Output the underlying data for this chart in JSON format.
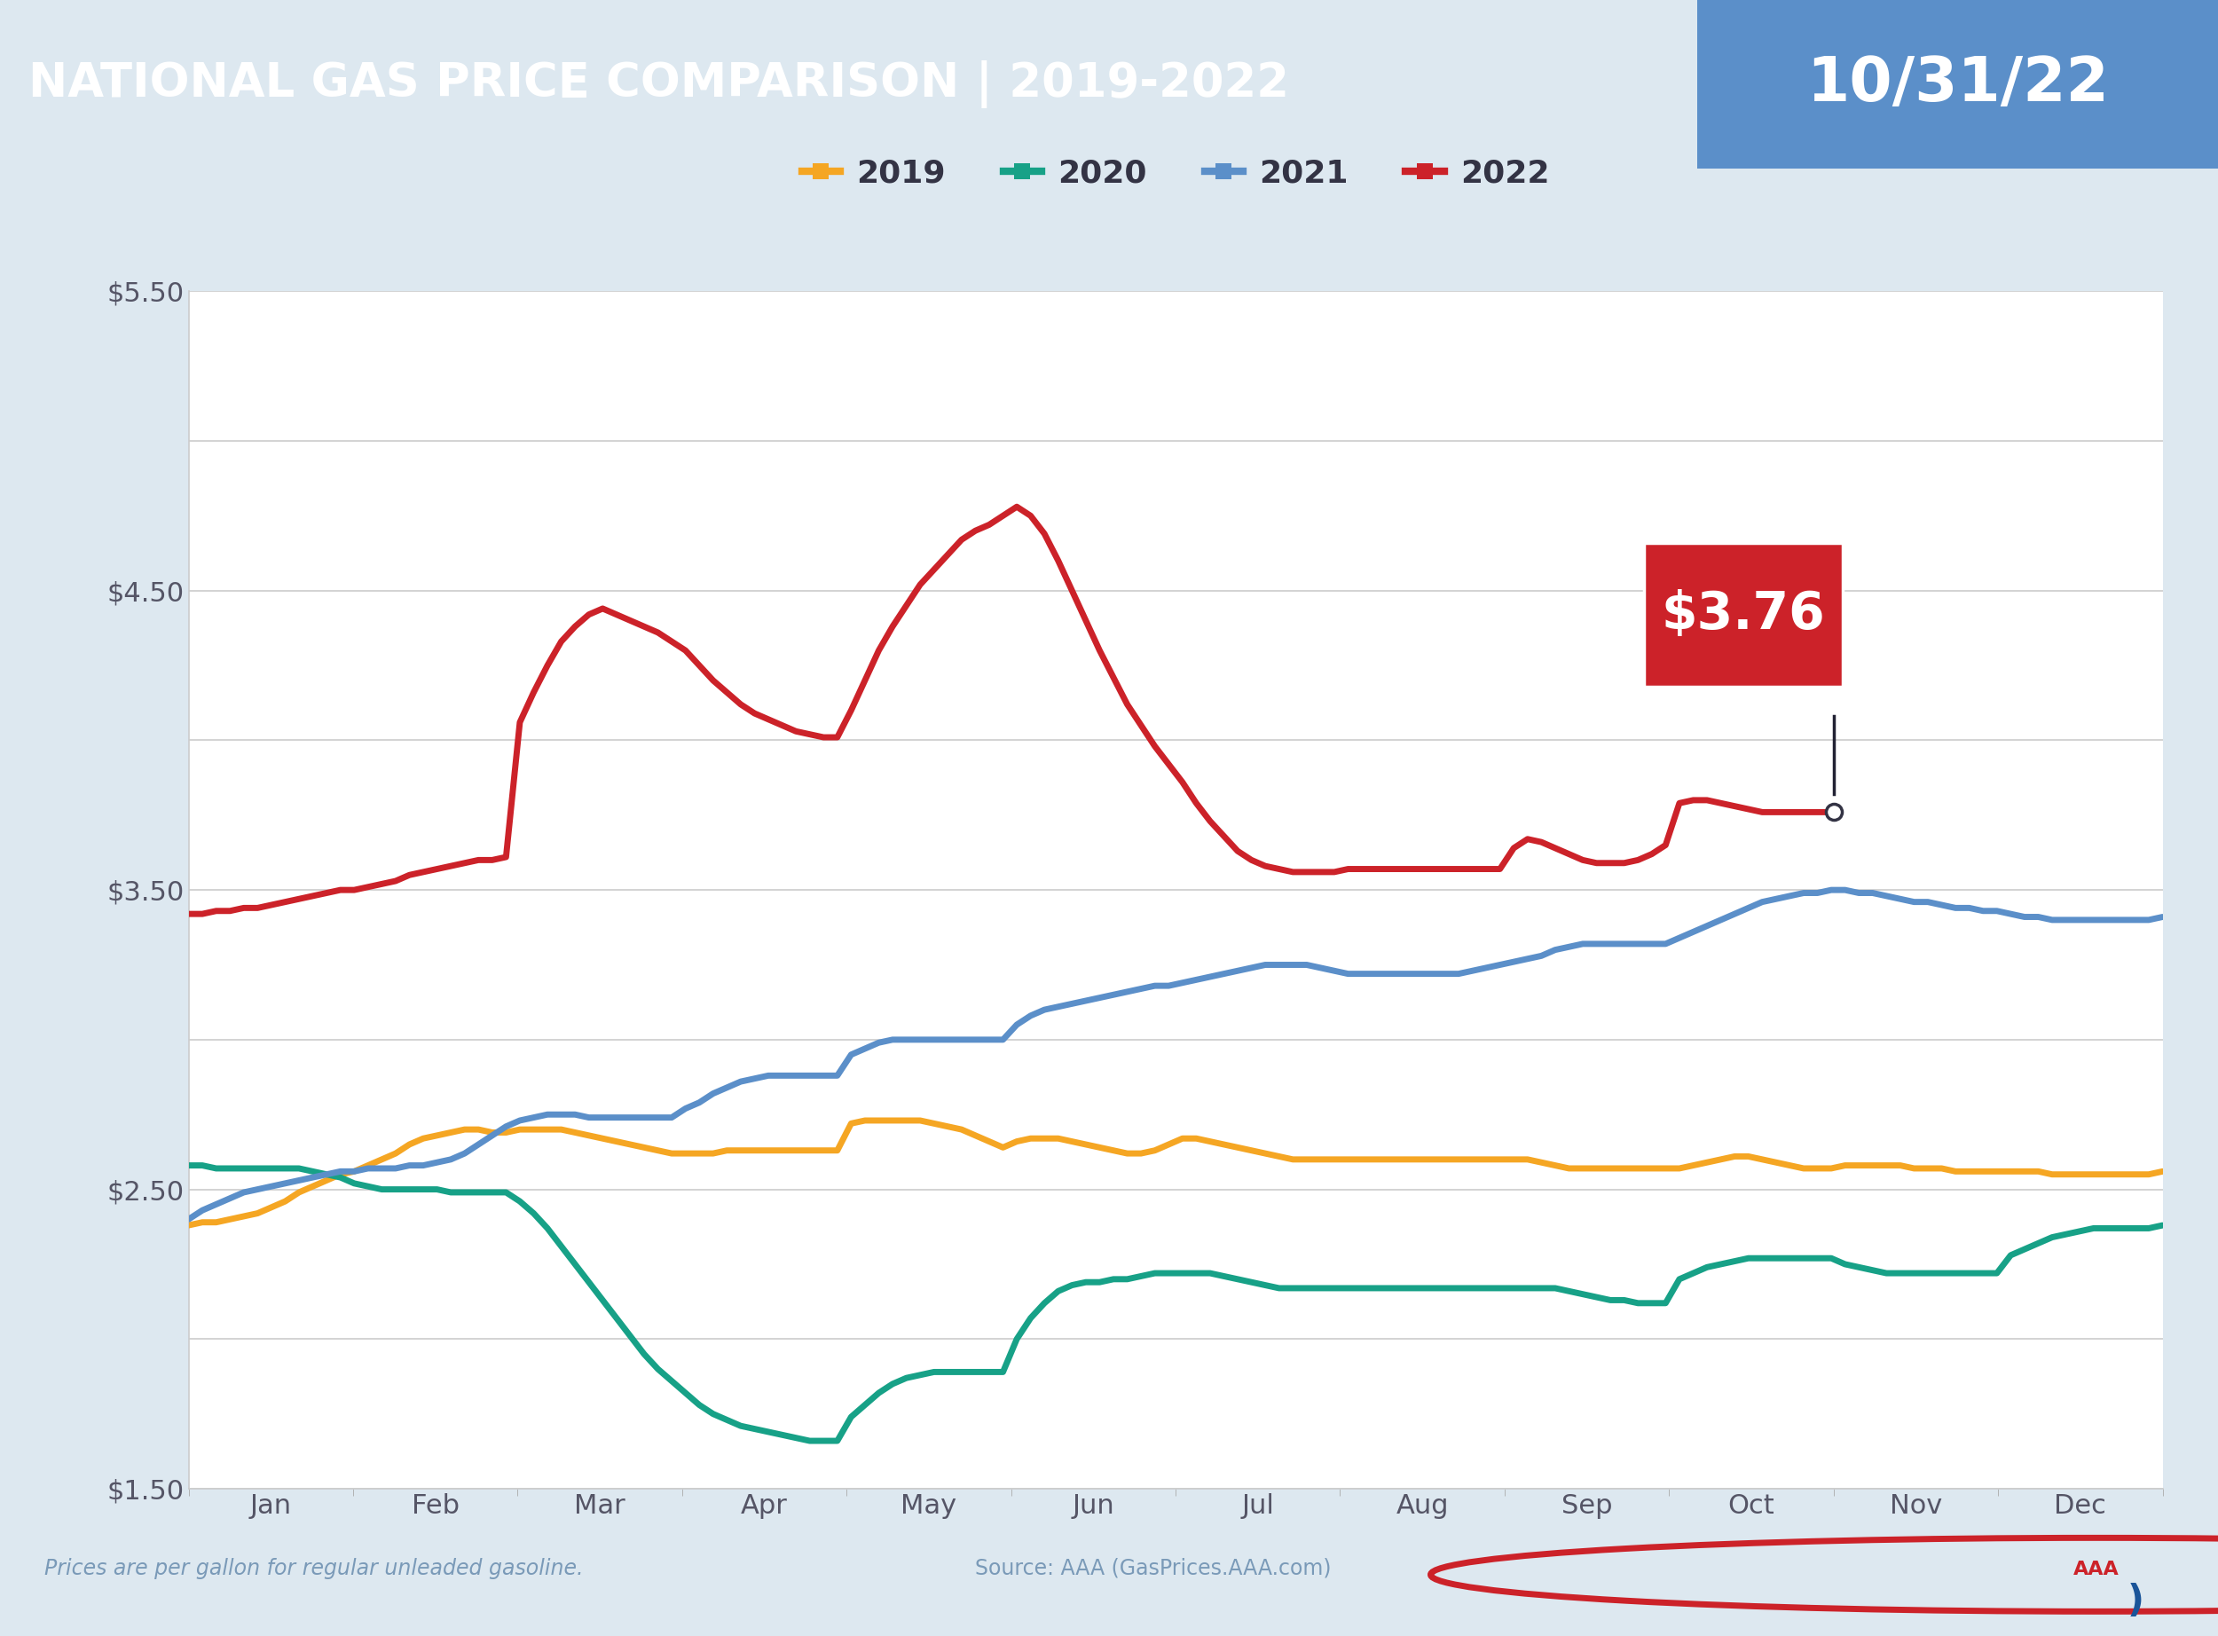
{
  "title_left": "NATIONAL GAS PRICE COMPARISON | 2019-2022",
  "title_right": "10/31/22",
  "title_bg_color": "#1a5499",
  "title_right_bg_color": "#5b8fc9",
  "footer_text_left": "Prices are per gallon for regular unleaded gasoline.",
  "footer_text_right": "Source: AAA (GasPrices.AAA.com)",
  "background_color": "#dde8f0",
  "chart_bg_color": "#ffffff",
  "annotation_value": "$3.76",
  "annotation_color": "#cc2229",
  "months": [
    "Jan",
    "Feb",
    "Mar",
    "Apr",
    "May",
    "Jun",
    "Jul",
    "Aug",
    "Sep",
    "Oct",
    "Nov",
    "Dec"
  ],
  "ylim": [
    1.5,
    5.5
  ],
  "yticks_major": [
    1.5,
    2.5,
    3.5,
    4.5,
    5.5
  ],
  "yticks_grid": [
    1.5,
    2.0,
    2.5,
    3.0,
    3.5,
    4.0,
    4.5,
    5.0,
    5.5
  ],
  "year2019": {
    "color": "#f5a623",
    "label": "2019",
    "values": [
      2.38,
      2.39,
      2.39,
      2.4,
      2.41,
      2.42,
      2.44,
      2.46,
      2.49,
      2.51,
      2.53,
      2.55,
      2.56,
      2.58,
      2.6,
      2.62,
      2.65,
      2.67,
      2.68,
      2.69,
      2.7,
      2.7,
      2.69,
      2.69,
      2.7,
      2.7,
      2.7,
      2.7,
      2.69,
      2.68,
      2.67,
      2.66,
      2.65,
      2.64,
      2.63,
      2.62,
      2.62,
      2.62,
      2.62,
      2.63,
      2.63,
      2.63,
      2.63,
      2.63,
      2.63,
      2.63,
      2.63,
      2.63,
      2.72,
      2.73,
      2.73,
      2.73,
      2.73,
      2.73,
      2.72,
      2.71,
      2.7,
      2.68,
      2.66,
      2.64,
      2.66,
      2.67,
      2.67,
      2.67,
      2.66,
      2.65,
      2.64,
      2.63,
      2.62,
      2.62,
      2.63,
      2.65,
      2.67,
      2.67,
      2.66,
      2.65,
      2.64,
      2.63,
      2.62,
      2.61,
      2.6,
      2.6,
      2.6,
      2.6,
      2.6,
      2.6,
      2.6,
      2.6,
      2.6,
      2.6,
      2.6,
      2.6,
      2.6,
      2.6,
      2.6,
      2.6,
      2.6,
      2.6,
      2.59,
      2.58,
      2.57,
      2.57,
      2.57,
      2.57,
      2.57,
      2.57,
      2.57,
      2.57,
      2.57,
      2.58,
      2.59,
      2.6,
      2.61,
      2.61,
      2.6,
      2.59,
      2.58,
      2.57,
      2.57,
      2.57,
      2.58,
      2.58,
      2.58,
      2.58,
      2.58,
      2.57,
      2.57,
      2.57,
      2.56,
      2.56,
      2.56,
      2.56,
      2.56,
      2.56,
      2.56,
      2.55,
      2.55,
      2.55,
      2.55,
      2.55,
      2.55,
      2.55,
      2.55,
      2.56
    ]
  },
  "year2020": {
    "color": "#17a187",
    "label": "2020",
    "values": [
      2.58,
      2.58,
      2.57,
      2.57,
      2.57,
      2.57,
      2.57,
      2.57,
      2.57,
      2.56,
      2.55,
      2.54,
      2.52,
      2.51,
      2.5,
      2.5,
      2.5,
      2.5,
      2.5,
      2.49,
      2.49,
      2.49,
      2.49,
      2.49,
      2.46,
      2.42,
      2.37,
      2.31,
      2.25,
      2.19,
      2.13,
      2.07,
      2.01,
      1.95,
      1.9,
      1.86,
      1.82,
      1.78,
      1.75,
      1.73,
      1.71,
      1.7,
      1.69,
      1.68,
      1.67,
      1.66,
      1.66,
      1.66,
      1.74,
      1.78,
      1.82,
      1.85,
      1.87,
      1.88,
      1.89,
      1.89,
      1.89,
      1.89,
      1.89,
      1.89,
      2.0,
      2.07,
      2.12,
      2.16,
      2.18,
      2.19,
      2.19,
      2.2,
      2.2,
      2.21,
      2.22,
      2.22,
      2.22,
      2.22,
      2.22,
      2.21,
      2.2,
      2.19,
      2.18,
      2.17,
      2.17,
      2.17,
      2.17,
      2.17,
      2.17,
      2.17,
      2.17,
      2.17,
      2.17,
      2.17,
      2.17,
      2.17,
      2.17,
      2.17,
      2.17,
      2.17,
      2.17,
      2.17,
      2.17,
      2.17,
      2.16,
      2.15,
      2.14,
      2.13,
      2.13,
      2.12,
      2.12,
      2.12,
      2.2,
      2.22,
      2.24,
      2.25,
      2.26,
      2.27,
      2.27,
      2.27,
      2.27,
      2.27,
      2.27,
      2.27,
      2.25,
      2.24,
      2.23,
      2.22,
      2.22,
      2.22,
      2.22,
      2.22,
      2.22,
      2.22,
      2.22,
      2.22,
      2.28,
      2.3,
      2.32,
      2.34,
      2.35,
      2.36,
      2.37,
      2.37,
      2.37,
      2.37,
      2.37,
      2.38
    ]
  },
  "year2021": {
    "color": "#5b8fc9",
    "label": "2021",
    "values": [
      2.4,
      2.43,
      2.45,
      2.47,
      2.49,
      2.5,
      2.51,
      2.52,
      2.53,
      2.54,
      2.55,
      2.56,
      2.56,
      2.57,
      2.57,
      2.57,
      2.58,
      2.58,
      2.59,
      2.6,
      2.62,
      2.65,
      2.68,
      2.71,
      2.73,
      2.74,
      2.75,
      2.75,
      2.75,
      2.74,
      2.74,
      2.74,
      2.74,
      2.74,
      2.74,
      2.74,
      2.77,
      2.79,
      2.82,
      2.84,
      2.86,
      2.87,
      2.88,
      2.88,
      2.88,
      2.88,
      2.88,
      2.88,
      2.95,
      2.97,
      2.99,
      3.0,
      3.0,
      3.0,
      3.0,
      3.0,
      3.0,
      3.0,
      3.0,
      3.0,
      3.05,
      3.08,
      3.1,
      3.11,
      3.12,
      3.13,
      3.14,
      3.15,
      3.16,
      3.17,
      3.18,
      3.18,
      3.19,
      3.2,
      3.21,
      3.22,
      3.23,
      3.24,
      3.25,
      3.25,
      3.25,
      3.25,
      3.24,
      3.23,
      3.22,
      3.22,
      3.22,
      3.22,
      3.22,
      3.22,
      3.22,
      3.22,
      3.22,
      3.23,
      3.24,
      3.25,
      3.26,
      3.27,
      3.28,
      3.3,
      3.31,
      3.32,
      3.32,
      3.32,
      3.32,
      3.32,
      3.32,
      3.32,
      3.34,
      3.36,
      3.38,
      3.4,
      3.42,
      3.44,
      3.46,
      3.47,
      3.48,
      3.49,
      3.49,
      3.5,
      3.5,
      3.49,
      3.49,
      3.48,
      3.47,
      3.46,
      3.46,
      3.45,
      3.44,
      3.44,
      3.43,
      3.43,
      3.42,
      3.41,
      3.41,
      3.4,
      3.4,
      3.4,
      3.4,
      3.4,
      3.4,
      3.4,
      3.4,
      3.41
    ]
  },
  "year2022": {
    "color": "#cc2229",
    "label": "2022",
    "values": [
      3.42,
      3.42,
      3.43,
      3.43,
      3.44,
      3.44,
      3.45,
      3.46,
      3.47,
      3.48,
      3.49,
      3.5,
      3.5,
      3.51,
      3.52,
      3.53,
      3.55,
      3.56,
      3.57,
      3.58,
      3.59,
      3.6,
      3.6,
      3.61,
      4.06,
      4.16,
      4.25,
      4.33,
      4.38,
      4.42,
      4.44,
      4.42,
      4.4,
      4.38,
      4.36,
      4.33,
      4.3,
      4.25,
      4.2,
      4.16,
      4.12,
      4.09,
      4.07,
      4.05,
      4.03,
      4.02,
      4.01,
      4.01,
      4.1,
      4.2,
      4.3,
      4.38,
      4.45,
      4.52,
      4.57,
      4.62,
      4.67,
      4.7,
      4.72,
      4.75,
      4.78,
      4.75,
      4.69,
      4.6,
      4.5,
      4.4,
      4.3,
      4.21,
      4.12,
      4.05,
      3.98,
      3.92,
      3.86,
      3.79,
      3.73,
      3.68,
      3.63,
      3.6,
      3.58,
      3.57,
      3.56,
      3.56,
      3.56,
      3.56,
      3.57,
      3.57,
      3.57,
      3.57,
      3.57,
      3.57,
      3.57,
      3.57,
      3.57,
      3.57,
      3.57,
      3.57,
      3.64,
      3.67,
      3.66,
      3.64,
      3.62,
      3.6,
      3.59,
      3.59,
      3.59,
      3.6,
      3.62,
      3.65,
      3.79,
      3.8,
      3.8,
      3.79,
      3.78,
      3.77,
      3.76,
      3.76,
      3.76,
      3.76,
      3.76,
      3.76,
      null,
      null,
      null,
      null,
      null,
      null,
      null,
      null,
      null,
      null,
      null,
      null,
      null,
      null,
      null,
      null,
      null,
      null,
      null,
      null,
      null,
      null,
      null,
      null
    ]
  }
}
